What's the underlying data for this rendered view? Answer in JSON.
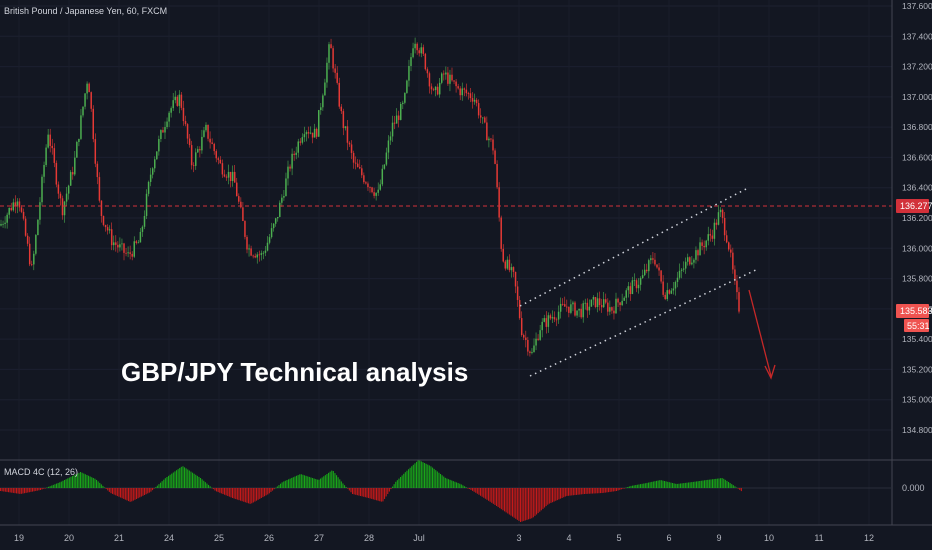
{
  "header": {
    "symbol_title": "British Pound / Japanese Yen, 60, FXCM"
  },
  "overlay": {
    "headline": "GBP/JPY Technical analysis"
  },
  "indicator": {
    "label": "MACD 4C (12, 26)",
    "zero_label": "0.000"
  },
  "colors": {
    "background": "#131722",
    "up": "#4caf50",
    "down": "#e53935",
    "macd_pos": "#19a519",
    "macd_neg": "#c41a1a",
    "resistance_line": "#d2313a",
    "arrow": "#c62828",
    "channel": "#d1d4dc"
  },
  "chart_data": [
    {
      "type": "line",
      "title": "British Pound / Japanese Yen, 60, FXCM",
      "price_axis": {
        "ticks": [
          "137.600",
          "137.400",
          "137.200",
          "137.000",
          "136.800",
          "136.600",
          "136.400",
          "136.200",
          "136.000",
          "135.800",
          "135.600",
          "135.400",
          "135.200",
          "135.000",
          "134.800"
        ],
        "ylim": [
          134.72,
          137.65
        ]
      },
      "time_axis": {
        "ticks": [
          "19",
          "20",
          "21",
          "24",
          "25",
          "26",
          "27",
          "28",
          "Jul",
          "3",
          "4",
          "5",
          "6",
          "9",
          "10",
          "11",
          "12"
        ]
      },
      "markers": {
        "last_price": "135.583",
        "countdown": "55:31",
        "resistance_level": "136.277"
      },
      "series": [
        {
          "x": [
            "19",
            "20",
            "21",
            "24",
            "25",
            "26",
            "27",
            "28",
            "Jul",
            "3",
            "4",
            "5",
            "6",
            "9"
          ],
          "values": [
            136.18,
            136.78,
            136.18,
            136.85,
            136.55,
            135.97,
            136.8,
            136.48,
            137.35,
            135.75,
            135.62,
            135.75,
            135.78,
            135.98
          ]
        }
      ],
      "annotations": {
        "channel": "ascending channel (dotted), price broke below lower boundary",
        "arrow": "down arrow projecting further decline"
      }
    },
    {
      "type": "bar",
      "title": "MACD 4C (12, 26)",
      "zero_label": "0.000"
    }
  ]
}
